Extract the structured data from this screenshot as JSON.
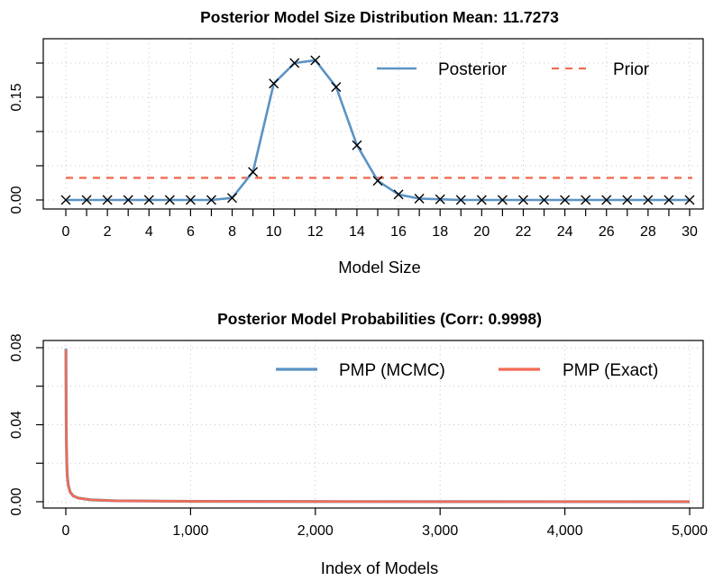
{
  "chart_data": [
    {
      "type": "line",
      "title": "Posterior Model Size Distribution Mean: 11.7273",
      "xlabel": "Model Size",
      "ylabel": "",
      "xlim": [
        0,
        30
      ],
      "ylim": [
        0,
        0.2
      ],
      "x_ticks": [
        0,
        1,
        2,
        3,
        4,
        5,
        6,
        7,
        8,
        9,
        10,
        11,
        12,
        13,
        14,
        15,
        16,
        17,
        18,
        19,
        20,
        21,
        22,
        23,
        24,
        25,
        26,
        27,
        28,
        29,
        30
      ],
      "x_tick_labels": [
        "0",
        "2",
        "4",
        "6",
        "8",
        "10",
        "12",
        "14",
        "16",
        "18",
        "20",
        "22",
        "24",
        "26",
        "28",
        "30"
      ],
      "y_ticks": [
        0,
        0.05,
        0.1,
        0.15,
        0.2
      ],
      "y_tick_labels": [
        "0.00",
        "0.15"
      ],
      "grid": true,
      "legend_position": "top-right",
      "x": [
        0,
        1,
        2,
        3,
        4,
        5,
        6,
        7,
        8,
        9,
        10,
        11,
        12,
        13,
        14,
        15,
        16,
        17,
        18,
        19,
        20,
        21,
        22,
        23,
        24,
        25,
        26,
        27,
        28,
        29,
        30
      ],
      "series": [
        {
          "name": "Posterior",
          "color": "#5b93c4",
          "style": "solid",
          "marker": "x",
          "values": [
            0,
            0,
            0,
            0,
            0,
            0,
            0,
            0,
            0.003,
            0.041,
            0.17,
            0.2,
            0.204,
            0.165,
            0.08,
            0.028,
            0.008,
            0.002,
            0.001,
            0,
            0,
            0,
            0,
            0,
            0,
            0,
            0,
            0,
            0,
            0,
            0
          ]
        },
        {
          "name": "Prior",
          "color": "#f26b55",
          "style": "dashed",
          "values": [
            0.0323,
            0.0323,
            0.0323,
            0.0323,
            0.0323,
            0.0323,
            0.0323,
            0.0323,
            0.0323,
            0.0323,
            0.0323,
            0.0323,
            0.0323,
            0.0323,
            0.0323,
            0.0323,
            0.0323,
            0.0323,
            0.0323,
            0.0323,
            0.0323,
            0.0323,
            0.0323,
            0.0323,
            0.0323,
            0.0323,
            0.0323,
            0.0323,
            0.0323,
            0.0323,
            0.0323
          ]
        }
      ]
    },
    {
      "type": "line",
      "title": "Posterior Model Probabilities (Corr: 0.9998)",
      "xlabel": "Index of Models",
      "ylabel": "",
      "xlim": [
        0,
        5000
      ],
      "ylim": [
        0,
        0.08
      ],
      "x_ticks": [
        0,
        1000,
        2000,
        3000,
        4000,
        5000
      ],
      "x_tick_labels": [
        "0",
        "1,000",
        "2,000",
        "3,000",
        "4,000",
        "5,000"
      ],
      "y_ticks": [
        0,
        0.02,
        0.04,
        0.06,
        0.08
      ],
      "y_tick_labels": [
        "0.00",
        "0.04",
        "0.08"
      ],
      "grid": true,
      "legend_position": "top-right",
      "x": [
        1,
        2,
        3,
        5,
        8,
        12,
        20,
        35,
        60,
        100,
        200,
        400,
        1000,
        2000,
        3000,
        4000,
        5000
      ],
      "series": [
        {
          "name": "PMP (MCMC)",
          "color": "#5b93c4",
          "values": [
            0.0795,
            0.06,
            0.045,
            0.03,
            0.02,
            0.0135,
            0.0085,
            0.005,
            0.003,
            0.0019,
            0.001,
            0.0005,
            0.0002,
            0.0001,
            5e-05,
            2e-05,
            1e-05
          ]
        },
        {
          "name": "PMP (Exact)",
          "color": "#f26b55",
          "values": [
            0.079,
            0.059,
            0.0445,
            0.0298,
            0.0199,
            0.0134,
            0.0084,
            0.005,
            0.003,
            0.0019,
            0.001,
            0.0005,
            0.0002,
            0.0001,
            5e-05,
            2e-05,
            1e-05
          ]
        }
      ]
    }
  ]
}
